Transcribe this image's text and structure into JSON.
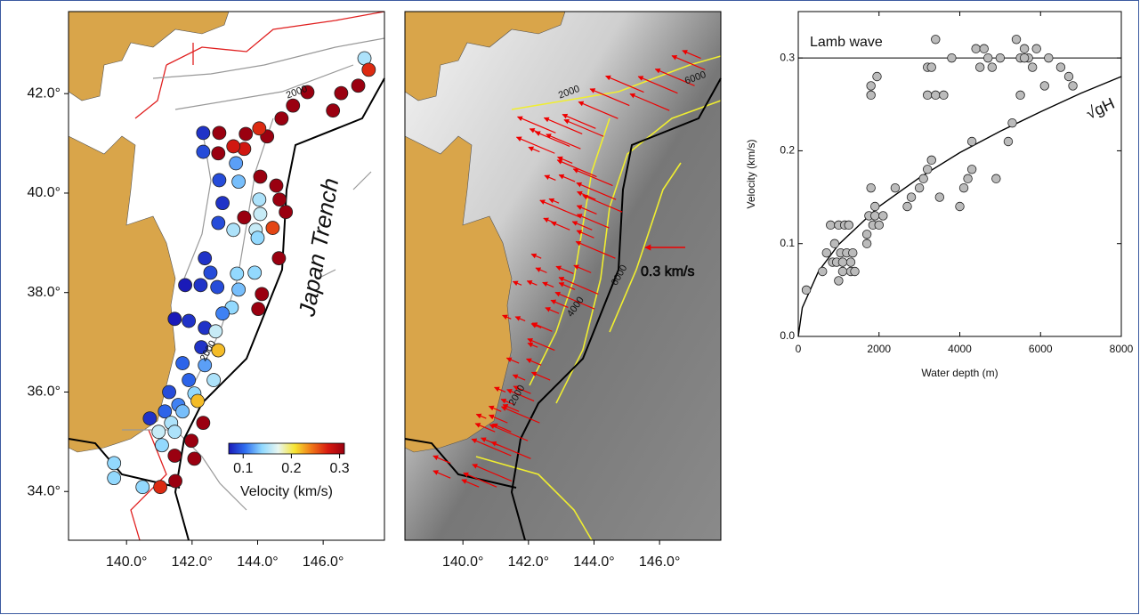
{
  "chart_data": [
    {
      "type": "map",
      "xlim": [
        138.23,
        147.87
      ],
      "ylim": [
        33.02,
        43.65
      ],
      "xticks": [
        {
          "value": 140,
          "label": "140.0°"
        },
        {
          "value": 142,
          "label": "142.0°"
        },
        {
          "value": 144,
          "label": "144.0°"
        },
        {
          "value": 146,
          "label": "146.0°"
        }
      ],
      "yticks": [
        {
          "value": 34,
          "label": "34.0°"
        },
        {
          "value": 36,
          "label": "36.0°"
        },
        {
          "value": 38,
          "label": "38.0°"
        },
        {
          "value": 40,
          "label": "40.0°"
        },
        {
          "value": 42,
          "label": "42.0°"
        }
      ],
      "x": [
        147.26,
        147.39,
        147.07,
        146.55,
        146.3,
        145.52,
        145.08,
        144.73,
        144.29,
        144.05,
        143.64,
        143.59,
        143.26,
        142.83,
        142.8,
        142.34,
        142.34,
        143.34,
        144.08,
        144.57,
        144.67,
        144.86,
        142.83,
        143.42,
        144.05,
        144.08,
        143.59,
        142.93,
        142.8,
        143.26,
        143.94,
        144.46,
        144.0,
        144.65,
        142.39,
        142.56,
        143.37,
        143.91,
        141.79,
        142.26,
        142.77,
        143.42,
        144.13,
        143.21,
        144.02,
        141.47,
        141.9,
        142.39,
        142.93,
        142.28,
        142.8,
        142.72,
        141.71,
        142.39,
        141.9,
        142.66,
        141.3,
        142.07,
        141.58,
        142.17,
        141.17,
        141.71,
        140.71,
        141.36,
        142.34,
        140.98,
        141.47,
        141.08,
        141.98,
        141.47,
        142.07,
        139.62,
        139.62,
        140.49,
        141.03,
        141.49
      ],
      "y": [
        42.71,
        42.48,
        42.16,
        42.01,
        41.66,
        42.03,
        41.76,
        41.5,
        41.14,
        41.3,
        41.19,
        40.89,
        40.94,
        41.21,
        40.8,
        41.21,
        40.83,
        40.6,
        40.33,
        40.15,
        39.87,
        39.62,
        40.26,
        40.23,
        39.87,
        39.58,
        39.51,
        39.8,
        39.4,
        39.26,
        39.26,
        39.3,
        39.1,
        38.69,
        38.69,
        38.4,
        38.38,
        38.4,
        38.15,
        38.15,
        38.11,
        38.06,
        37.97,
        37.7,
        37.67,
        37.47,
        37.43,
        37.29,
        37.58,
        36.9,
        36.84,
        37.22,
        36.58,
        36.54,
        36.24,
        36.24,
        36.0,
        35.97,
        35.74,
        35.82,
        35.61,
        35.61,
        35.47,
        35.38,
        35.38,
        35.2,
        35.2,
        34.93,
        35.02,
        34.72,
        34.66,
        34.57,
        34.27,
        34.09,
        34.09,
        34.21
      ],
      "values": [
        0.15,
        0.27,
        0.32,
        0.32,
        0.32,
        0.31,
        0.32,
        0.32,
        0.32,
        0.27,
        0.31,
        0.28,
        0.28,
        0.31,
        0.31,
        0.08,
        0.09,
        0.12,
        0.32,
        0.32,
        0.32,
        0.32,
        0.09,
        0.13,
        0.15,
        0.16,
        0.33,
        0.08,
        0.09,
        0.15,
        0.16,
        0.26,
        0.14,
        0.32,
        0.08,
        0.09,
        0.14,
        0.14,
        0.07,
        0.08,
        0.09,
        0.13,
        0.32,
        0.14,
        0.32,
        0.07,
        0.08,
        0.08,
        0.11,
        0.08,
        0.22,
        0.16,
        0.1,
        0.12,
        0.1,
        0.15,
        0.09,
        0.14,
        0.11,
        0.22,
        0.1,
        0.13,
        0.08,
        0.15,
        0.31,
        0.16,
        0.15,
        0.14,
        0.31,
        0.32,
        0.32,
        0.14,
        0.14,
        0.14,
        0.27,
        0.32
      ],
      "colorbar": {
        "label": "Velocity (km/s)",
        "lim": [
          0.07,
          0.31
        ],
        "ticks": [
          0.1,
          0.2,
          0.3
        ],
        "colors": [
          "#1a1ab8",
          "#2f6ff0",
          "#8fd8ff",
          "#e8f6f0",
          "#f6e432",
          "#f07818",
          "#d81a10",
          "#9a0010"
        ]
      },
      "annotations": [
        "Japan Trench",
        "2000",
        "2000"
      ]
    },
    {
      "type": "map-vectors",
      "xlim": [
        138.23,
        147.87
      ],
      "ylim": [
        33.02,
        43.65
      ],
      "xticks": [
        {
          "value": 140,
          "label": "140.0°"
        },
        {
          "value": 142,
          "label": "142.0°"
        },
        {
          "value": 144,
          "label": "144.0°"
        },
        {
          "value": 146,
          "label": "146.0°"
        }
      ],
      "reference": {
        "value": 0.3,
        "label": "0.3 km/s"
      },
      "annotations": [
        "2000",
        "6000",
        "4000",
        "6000",
        "2000"
      ]
    },
    {
      "type": "scatter",
      "xlabel": "Water depth (m)",
      "ylabel": "Velocity (km/s)",
      "xlim": [
        0,
        8000
      ],
      "ylim": [
        0,
        0.35
      ],
      "xticks": [
        0,
        2000,
        4000,
        6000,
        8000
      ],
      "yticks": [
        {
          "value": 0,
          "label": "0.0"
        },
        0.1,
        0.2,
        0.3
      ],
      "x": [
        200,
        600,
        700,
        800,
        850,
        900,
        950,
        1000,
        1000,
        1050,
        1100,
        1100,
        1150,
        1200,
        1250,
        1300,
        1300,
        1350,
        1400,
        1700,
        1700,
        1750,
        1800,
        1800,
        1800,
        1850,
        1900,
        1900,
        1950,
        2000,
        2100,
        2400,
        2700,
        2800,
        3000,
        3100,
        3200,
        3200,
        3200,
        3300,
        3300,
        3400,
        3400,
        3500,
        3600,
        3800,
        4000,
        4100,
        4200,
        4300,
        4300,
        4400,
        4500,
        4600,
        4700,
        4800,
        4900,
        5000,
        5200,
        5300,
        5400,
        5500,
        5600,
        5700,
        5800,
        5900,
        6100,
        6200,
        6500,
        6700,
        6800,
        5500,
        5600
      ],
      "values": [
        0.05,
        0.07,
        0.09,
        0.12,
        0.08,
        0.1,
        0.08,
        0.12,
        0.06,
        0.09,
        0.08,
        0.07,
        0.12,
        0.09,
        0.12,
        0.07,
        0.08,
        0.09,
        0.07,
        0.1,
        0.11,
        0.13,
        0.16,
        0.27,
        0.26,
        0.12,
        0.14,
        0.13,
        0.28,
        0.12,
        0.13,
        0.16,
        0.14,
        0.15,
        0.16,
        0.17,
        0.18,
        0.29,
        0.26,
        0.29,
        0.19,
        0.32,
        0.26,
        0.15,
        0.26,
        0.3,
        0.14,
        0.16,
        0.17,
        0.18,
        0.21,
        0.31,
        0.29,
        0.31,
        0.3,
        0.29,
        0.17,
        0.3,
        0.21,
        0.23,
        0.32,
        0.26,
        0.31,
        0.3,
        0.29,
        0.31,
        0.27,
        0.3,
        0.29,
        0.28,
        0.27,
        0.3,
        0.3
      ],
      "reference_line": {
        "value": 0.3,
        "label": "Lamb wave"
      },
      "curve": {
        "label": "√gH",
        "x": [
          0,
          100,
          500,
          1000,
          2000,
          3000,
          4000,
          5000,
          6000,
          7000,
          8000
        ],
        "values": [
          0,
          0.031,
          0.07,
          0.099,
          0.14,
          0.171,
          0.198,
          0.221,
          0.242,
          0.262,
          0.28
        ]
      }
    }
  ]
}
